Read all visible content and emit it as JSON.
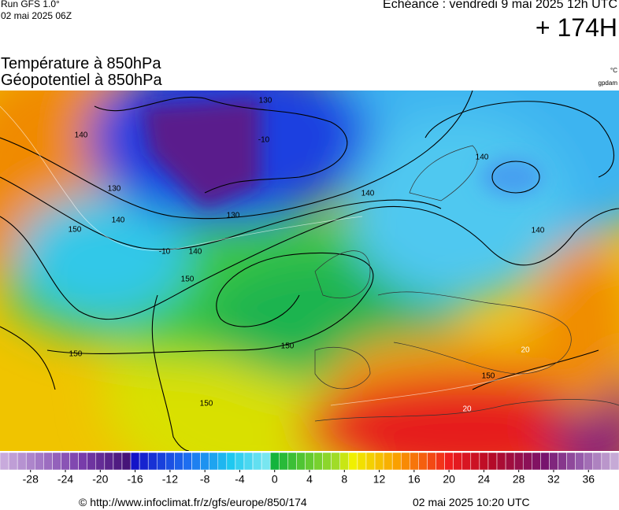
{
  "header": {
    "run": "Run GFS 1.0°",
    "run_time": "02 mai 2025 06Z",
    "valid": "Echéance : vendredi 9 mai 2025 12h UTC",
    "lead": "+ 174H"
  },
  "titles": {
    "line1": "Température à 850hPa",
    "line2": "Géopotentiel à 850hPa",
    "unit1": "°C",
    "unit2": "gpdam"
  },
  "contour_labels": [
    "140",
    "130",
    "140",
    "150",
    "130",
    "140",
    "140",
    "150",
    "150",
    "150",
    "150",
    "140",
    "140",
    "130",
    "150",
    "20",
    "20",
    "-10",
    "-10"
  ],
  "colorbar": {
    "range": [
      -31,
      40
    ],
    "ticks": [
      -28,
      -24,
      -20,
      -16,
      -12,
      -8,
      -4,
      0,
      4,
      8,
      12,
      16,
      20,
      24,
      28,
      32,
      36
    ]
  },
  "footer": {
    "url": "© http://www.infoclimat.fr/z/gfs/europe/850/174",
    "date": "02 mai 2025 10:20 UTC"
  }
}
